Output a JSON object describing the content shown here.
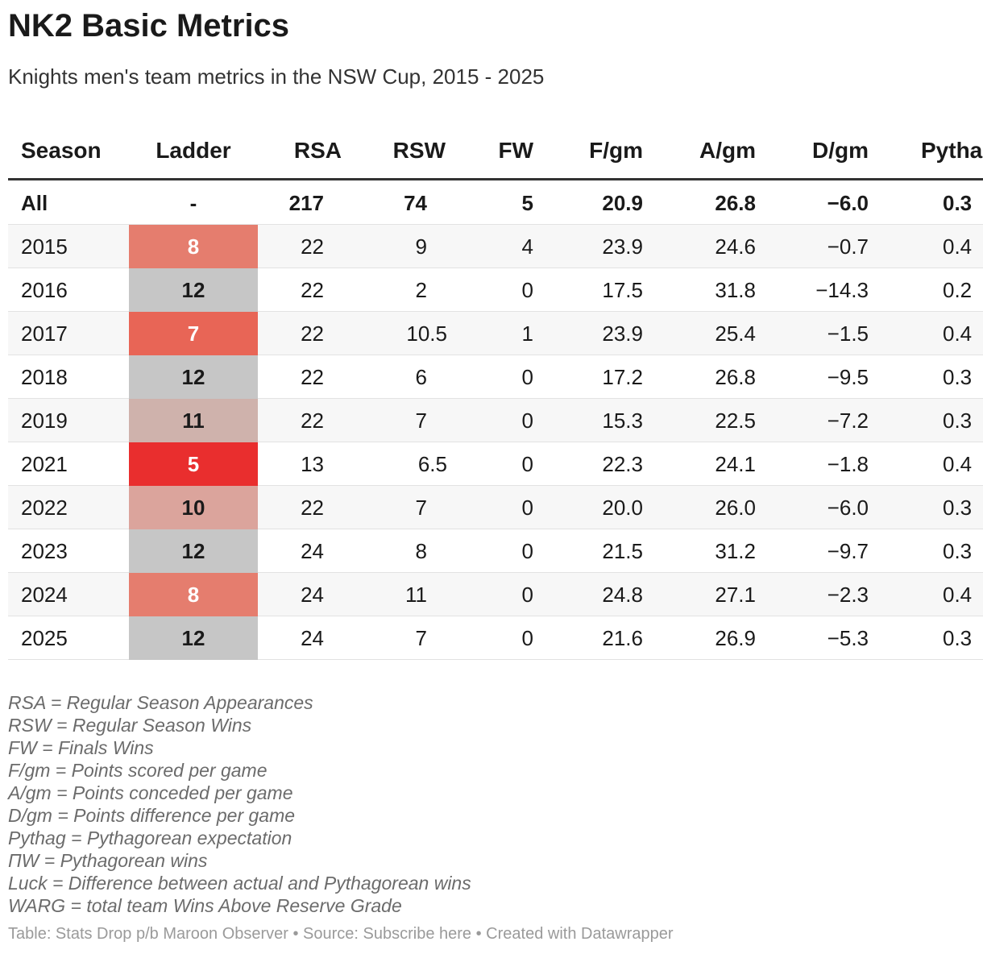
{
  "header": {
    "title": "NK2 Basic Metrics",
    "subtitle": "Knights men's team metrics in the NSW Cup, 2015 - 2025"
  },
  "table": {
    "columns": [
      "Season",
      "Ladder",
      "RSA",
      "RSW",
      "FW",
      "F/gm",
      "A/gm",
      "D/gm",
      "Pytha"
    ],
    "rows": [
      {
        "cells": [
          "All",
          "-",
          "217",
          "74",
          "5",
          "20.9",
          "26.8",
          "−6.0",
          "0.3"
        ]
      },
      {
        "cells": [
          "2015",
          "8",
          "22",
          "9",
          "4",
          "23.9",
          "24.6",
          "−0.7",
          "0.4"
        ],
        "ladder_color": "#e57d6e"
      },
      {
        "cells": [
          "2016",
          "12",
          "22",
          "2",
          "0",
          "17.5",
          "31.8",
          "−14.3",
          "0.2"
        ],
        "ladder_color": "#c6c6c6"
      },
      {
        "cells": [
          "2017",
          "7",
          "22",
          "10.5",
          "1",
          "23.9",
          "25.4",
          "−1.5",
          "0.4"
        ],
        "ladder_color": "#e86556"
      },
      {
        "cells": [
          "2018",
          "12",
          "22",
          "6",
          "0",
          "17.2",
          "26.8",
          "−9.5",
          "0.3"
        ],
        "ladder_color": "#c6c6c6"
      },
      {
        "cells": [
          "2019",
          "11",
          "22",
          "7",
          "0",
          "15.3",
          "22.5",
          "−7.2",
          "0.3"
        ],
        "ladder_color": "#cfb2ac"
      },
      {
        "cells": [
          "2021",
          "5",
          "13",
          "6.5",
          "0",
          "22.3",
          "24.1",
          "−1.8",
          "0.4"
        ],
        "ladder_color": "#e92e2e"
      },
      {
        "cells": [
          "2022",
          "10",
          "22",
          "7",
          "0",
          "20.0",
          "26.0",
          "−6.0",
          "0.3"
        ],
        "ladder_color": "#dba49c"
      },
      {
        "cells": [
          "2023",
          "12",
          "24",
          "8",
          "0",
          "21.5",
          "31.2",
          "−9.7",
          "0.3"
        ],
        "ladder_color": "#c6c6c6"
      },
      {
        "cells": [
          "2024",
          "8",
          "24",
          "11",
          "0",
          "24.8",
          "27.1",
          "−2.3",
          "0.4"
        ],
        "ladder_color": "#e57d6e"
      },
      {
        "cells": [
          "2025",
          "12",
          "24",
          "7",
          "0",
          "21.6",
          "26.9",
          "−5.3",
          "0.3"
        ],
        "ladder_color": "#c6c6c6"
      }
    ]
  },
  "notes": [
    "RSA = Regular Season Appearances",
    "RSW = Regular Season Wins",
    "FW = Finals Wins",
    "F/gm = Points scored per game",
    "A/gm = Points conceded per game",
    "D/gm = Points difference per game",
    "Pythag = Pythagorean expectation",
    "ΠW = Pythagorean wins",
    "Luck = Difference between actual and Pythagorean wins",
    "WARG = total team Wins Above Reserve Grade"
  ],
  "footer": "Table: Stats Drop p/b Maroon Observer • Source: Subscribe here • Created with Datawrapper"
}
